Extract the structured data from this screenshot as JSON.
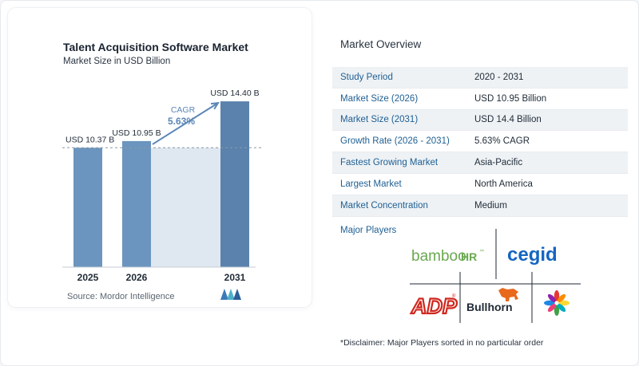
{
  "chart": {
    "title": "Talent Acquisition Software Market",
    "subtitle": "Market Size in USD Billion",
    "source": "Source:  Mordor Intelligence",
    "cagr_label": "CAGR",
    "cagr_value": "5.63%"
  },
  "chart_data": {
    "type": "bar",
    "title": "Talent Acquisition Software Market",
    "subtitle": "Market Size in USD Billion",
    "categories": [
      "2025",
      "2026",
      "2031"
    ],
    "values": [
      10.37,
      10.95,
      14.4
    ],
    "data_labels": [
      "USD 10.37 B",
      "USD 10.95 B",
      "USD 14.40 B"
    ],
    "ylim": [
      0,
      16
    ],
    "reference_line_value": 10.37,
    "annotation": "CAGR 5.63%",
    "colors": {
      "bar": "#6b95be",
      "bar_dark": "#5a82ad",
      "shade": "#dfe8f1",
      "arrow": "#5a86b6"
    }
  },
  "overview": {
    "title": "Market Overview",
    "rows": [
      {
        "label": "Study Period",
        "value": "2020 - 2031"
      },
      {
        "label": "Market Size (2026)",
        "value": "USD 10.95 Billion"
      },
      {
        "label": "Market Size (2031)",
        "value": "USD 14.4 Billion"
      },
      {
        "label": "Growth Rate (2026 - 2031)",
        "value": "5.63% CAGR"
      },
      {
        "label": "Fastest Growing Market",
        "value": "Asia-Pacific"
      },
      {
        "label": "Largest Market",
        "value": "North America"
      },
      {
        "label": "Market Concentration",
        "value": "Medium"
      }
    ]
  },
  "players": {
    "title": "Major Players",
    "logos": [
      {
        "name": "bambooHR",
        "icon": "bamboohr-logo"
      },
      {
        "name": "cegid",
        "icon": "cegid-logo"
      },
      {
        "name": "ADP",
        "icon": "adp-logo"
      },
      {
        "name": "Bullhorn",
        "icon": "bullhorn-logo"
      },
      {
        "name": "flower",
        "icon": "flower-logo"
      }
    ],
    "disclaimer": "*Disclaimer: Major Players sorted in no particular order"
  }
}
